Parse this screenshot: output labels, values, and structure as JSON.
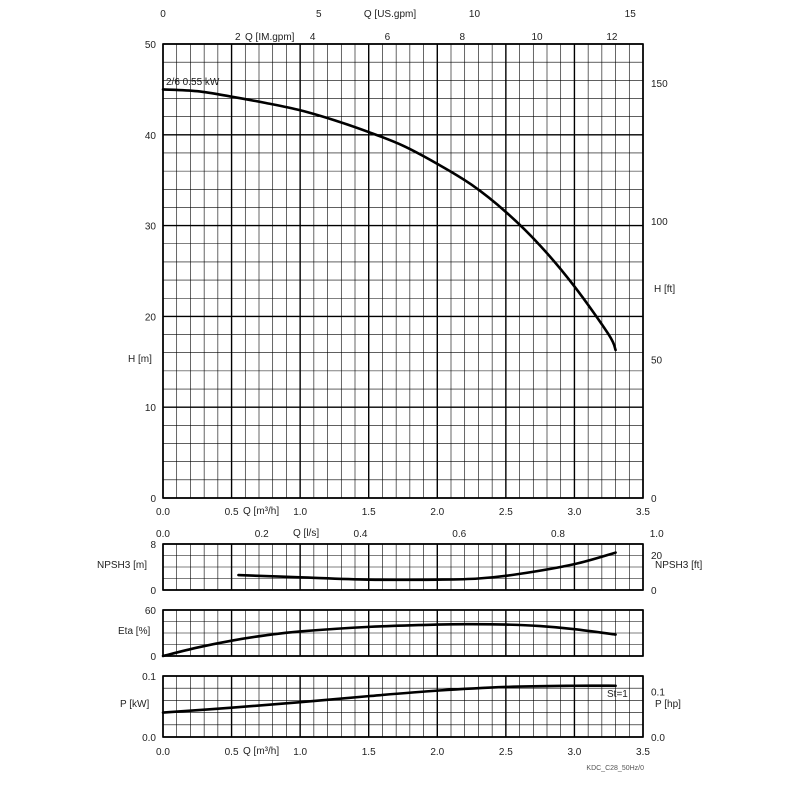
{
  "chart_data": [
    {
      "type": "line",
      "panel": "head",
      "x_axis": {
        "label": "Q [m³/h]",
        "lim": [
          0,
          3.5
        ],
        "ticks": [
          "0.0",
          "0.5",
          "1.0",
          "1.5",
          "2.0",
          "2.5",
          "3.0",
          "3.5"
        ]
      },
      "y_axis": {
        "label": "H [m]",
        "lim": [
          0,
          50
        ],
        "ticks": [
          "0",
          "10",
          "20",
          "30",
          "40",
          "50"
        ]
      },
      "y_axis_right": {
        "label": "H [ft]",
        "ticks": [
          "0",
          "50",
          "100",
          "150"
        ]
      },
      "top_axis_usgpm": {
        "label": "Q [US.gpm]",
        "ticks": [
          "0",
          "5",
          "10",
          "15"
        ]
      },
      "top_axis_imgpm": {
        "label": "Q [IM.gpm]",
        "ticks": [
          "2",
          "4",
          "6",
          "8",
          "10",
          "12"
        ]
      },
      "series": [
        {
          "name": "2/6 0.55 kW",
          "x": [
            0,
            0.25,
            0.5,
            0.75,
            1.0,
            1.25,
            1.5,
            1.75,
            2.0,
            2.25,
            2.5,
            2.75,
            3.0,
            3.25,
            3.3
          ],
          "y": [
            45,
            44.8,
            44.2,
            43.5,
            42.7,
            41.6,
            40.3,
            38.8,
            36.8,
            34.5,
            31.5,
            27.8,
            23.3,
            18.0,
            16.3
          ]
        }
      ]
    },
    {
      "type": "line",
      "panel": "npsh",
      "flow_ls_axis": {
        "label": "Q [l/s]",
        "ticks": [
          "0.0",
          "0.2",
          "0.4",
          "0.6",
          "0.8",
          "1.0"
        ]
      },
      "y_axis": {
        "label": "NPSH3 [m]",
        "lim": [
          0,
          8
        ],
        "ticks": [
          "0",
          "8"
        ]
      },
      "y_axis_right": {
        "label": "NPSH3 [ft]",
        "ticks": [
          "0",
          "20"
        ]
      },
      "series": [
        {
          "x": [
            0.55,
            1.0,
            1.5,
            2.0,
            2.3,
            2.6,
            3.0,
            3.3
          ],
          "y": [
            2.6,
            2.2,
            1.8,
            1.8,
            2.0,
            2.8,
            4.5,
            6.5
          ]
        }
      ]
    },
    {
      "type": "line",
      "panel": "efficiency",
      "y_axis": {
        "label": "Eta [%]",
        "lim": [
          0,
          60
        ],
        "ticks": [
          "0",
          "60"
        ]
      },
      "series": [
        {
          "x": [
            0,
            0.25,
            0.5,
            0.75,
            1.0,
            1.5,
            2.0,
            2.25,
            2.5,
            2.75,
            3.0,
            3.3
          ],
          "y": [
            0,
            11,
            20,
            27,
            32,
            38,
            41,
            41.5,
            41,
            39,
            35,
            28
          ]
        }
      ]
    },
    {
      "type": "line",
      "panel": "power",
      "x_axis": {
        "label": "Q [m³/h]",
        "lim": [
          0,
          3.5
        ],
        "ticks": [
          "0.0",
          "0.5",
          "1.0",
          "1.5",
          "2.0",
          "2.5",
          "3.0",
          "3.5"
        ]
      },
      "y_axis": {
        "label": "P [kW]",
        "lim": [
          0,
          0.1
        ],
        "ticks": [
          "0.0",
          "0.1"
        ]
      },
      "y_axis_right": {
        "label": "P [hp]",
        "ticks": [
          "0.0",
          "0.1"
        ]
      },
      "annotation": "St=1",
      "series": [
        {
          "x": [
            0,
            0.5,
            1.0,
            1.5,
            2.0,
            2.5,
            3.0,
            3.3
          ],
          "y": [
            0.04,
            0.048,
            0.057,
            0.067,
            0.076,
            0.082,
            0.084,
            0.084
          ]
        }
      ]
    }
  ],
  "footer_code": "KDC_C28_50Hz/0"
}
